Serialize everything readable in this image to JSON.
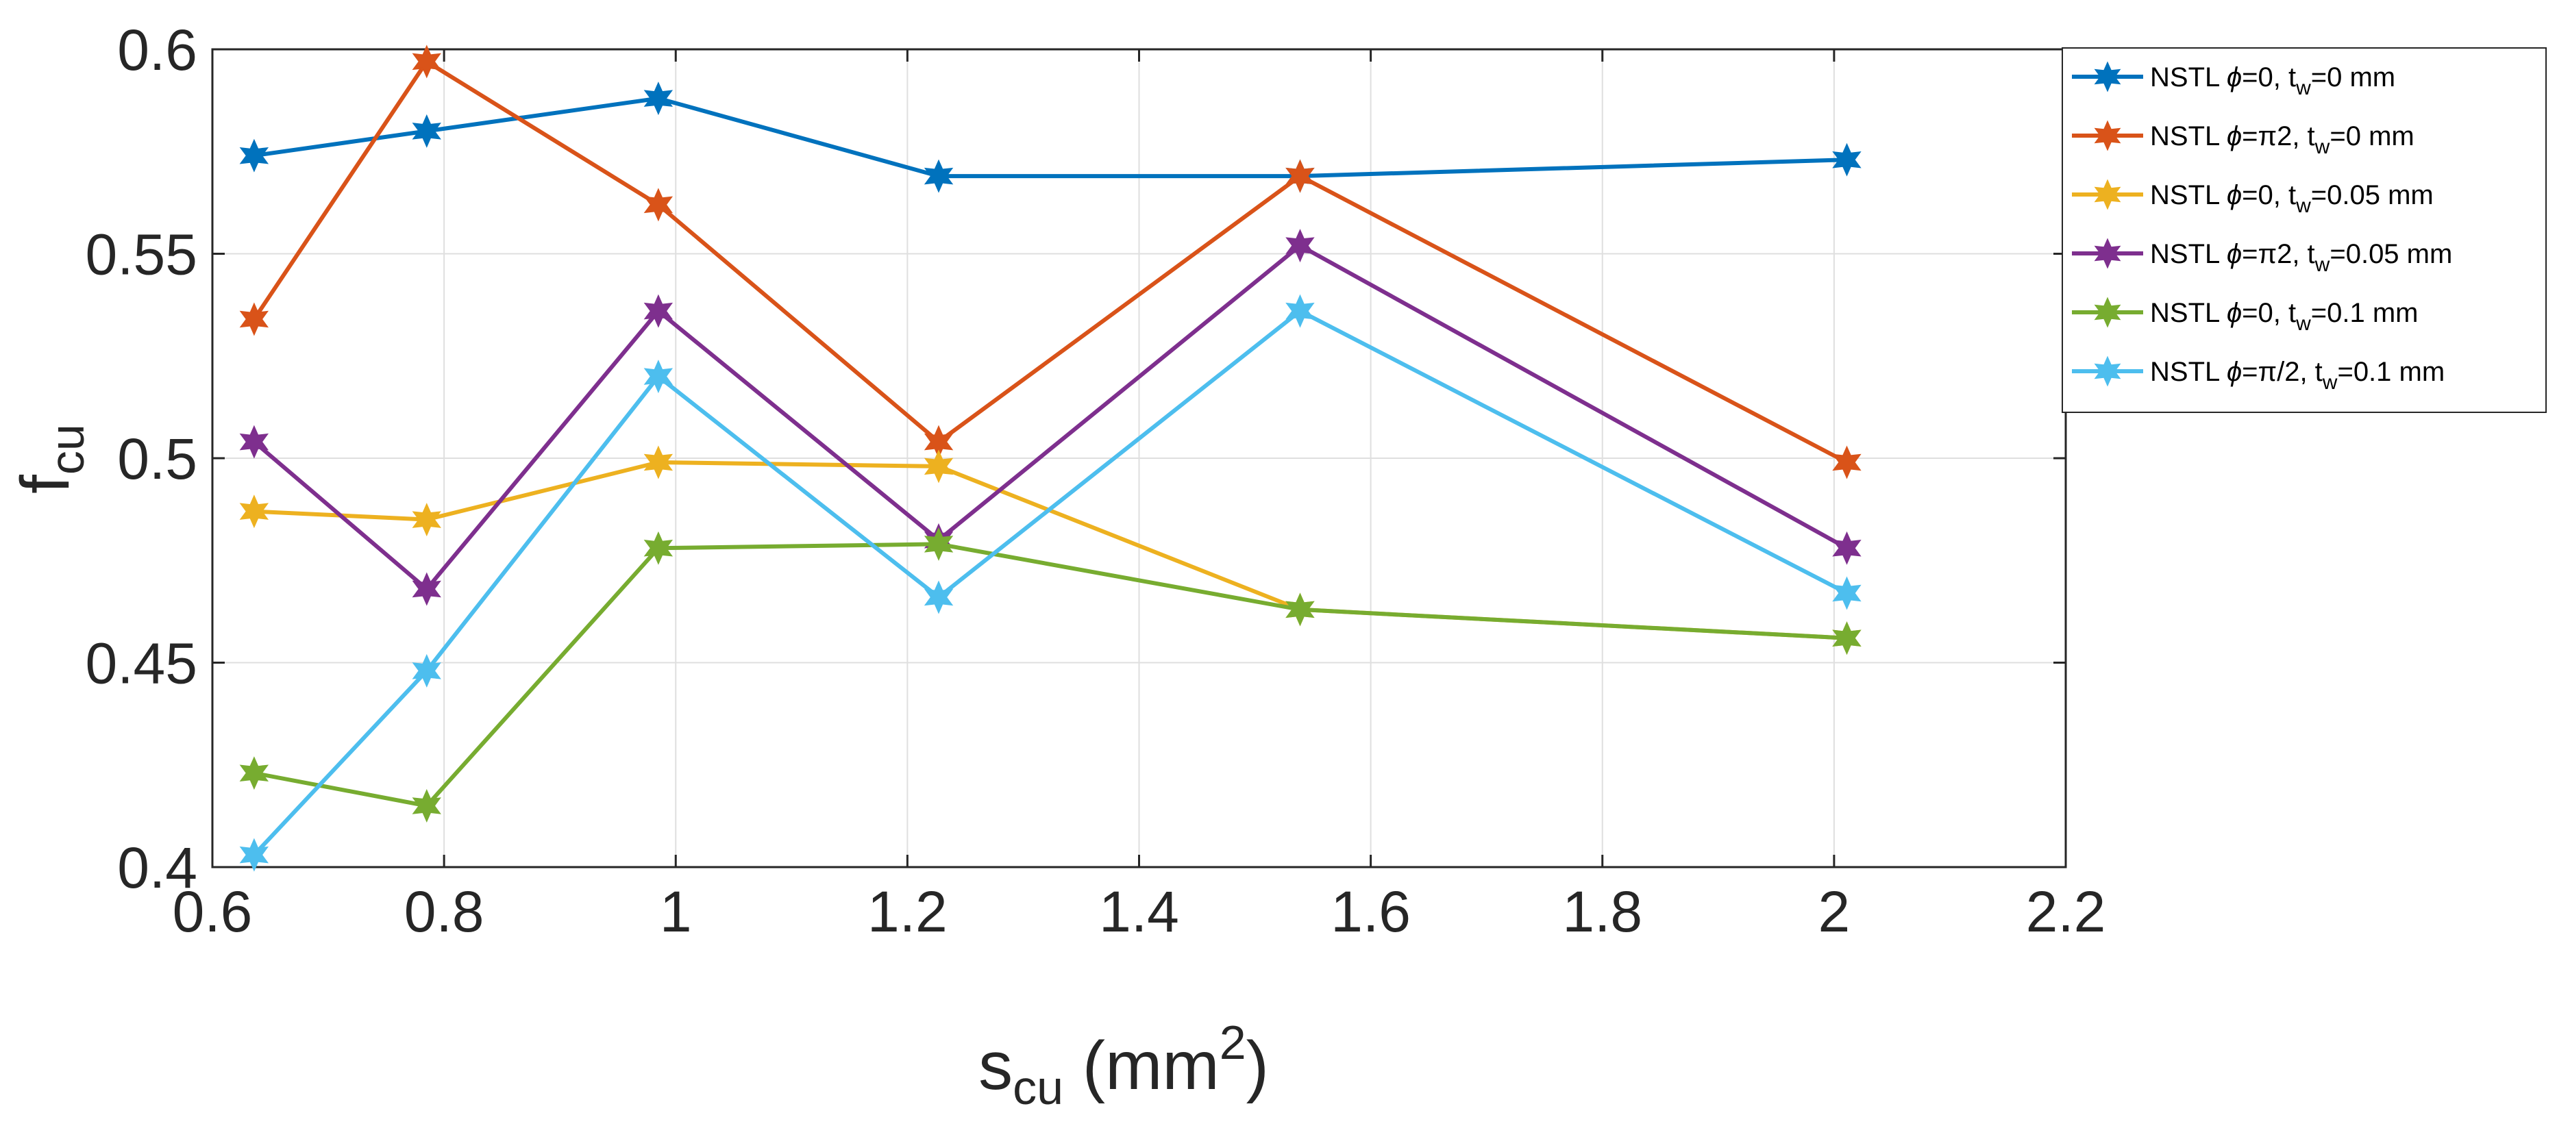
{
  "chart_data": {
    "type": "line",
    "title": "",
    "xlabel": {
      "base": "s",
      "sub": "cu",
      "rest": " (mm",
      "sup": "2",
      "end": ")"
    },
    "ylabel": {
      "base": "f",
      "sub": "cu"
    },
    "xlim": [
      0.6,
      2.2
    ],
    "ylim": [
      0.4,
      0.6
    ],
    "xticks": [
      0.6,
      0.8,
      1.0,
      1.2,
      1.4,
      1.6,
      1.8,
      2.0,
      2.2
    ],
    "xtick_labels": [
      "0.6",
      "0.8",
      "1",
      "1.2",
      "1.4",
      "1.6",
      "1.8",
      "2",
      "2.2"
    ],
    "yticks": [
      0.4,
      0.45,
      0.5,
      0.55,
      0.6
    ],
    "ytick_labels": [
      "0.4",
      "0.45",
      "0.5",
      "0.55",
      "0.6"
    ],
    "grid": true,
    "legend_position": "top-right-outside",
    "marker": "hexagram",
    "x": [
      0.636,
      0.785,
      0.985,
      1.227,
      1.539,
      2.011
    ],
    "series": [
      {
        "name": "s0",
        "color": "#0072BD",
        "label": {
          "pre": "NSTL ",
          "phi": "ϕ",
          "mid": "=0, t",
          "sub": "w",
          "post": "=0 mm"
        },
        "values": [
          0.574,
          0.58,
          0.588,
          0.569,
          0.569,
          0.573
        ]
      },
      {
        "name": "s1",
        "color": "#D95319",
        "label": {
          "pre": "NSTL ",
          "phi": "ϕ",
          "mid": "=π2, t",
          "sub": "w",
          "post": "=0 mm"
        },
        "values": [
          0.534,
          0.597,
          0.562,
          0.504,
          0.569,
          0.499
        ]
      },
      {
        "name": "s2",
        "color": "#EDB120",
        "label": {
          "pre": "NSTL ",
          "phi": "ϕ",
          "mid": "=0, t",
          "sub": "w",
          "post": "=0.05 mm"
        },
        "values": [
          0.487,
          0.485,
          0.499,
          0.498,
          0.463,
          0.456
        ]
      },
      {
        "name": "s3",
        "color": "#7E2F8E",
        "label": {
          "pre": "NSTL ",
          "phi": "ϕ",
          "mid": "=π2, t",
          "sub": "w",
          "post": "=0.05 mm"
        },
        "values": [
          0.504,
          0.468,
          0.536,
          0.48,
          0.552,
          0.478
        ]
      },
      {
        "name": "s4",
        "color": "#77AC30",
        "label": {
          "pre": "NSTL ",
          "phi": "ϕ",
          "mid": "=0, t",
          "sub": "w",
          "post": "=0.1 mm"
        },
        "values": [
          0.423,
          0.415,
          0.478,
          0.479,
          0.463,
          0.456
        ]
      },
      {
        "name": "s5",
        "color": "#4DBEEE",
        "label": {
          "pre": "NSTL ",
          "phi": "ϕ",
          "mid": "=π/2, t",
          "sub": "w",
          "post": "=0.1 mm"
        },
        "values": [
          0.403,
          0.448,
          0.52,
          0.466,
          0.536,
          0.467
        ]
      }
    ]
  }
}
